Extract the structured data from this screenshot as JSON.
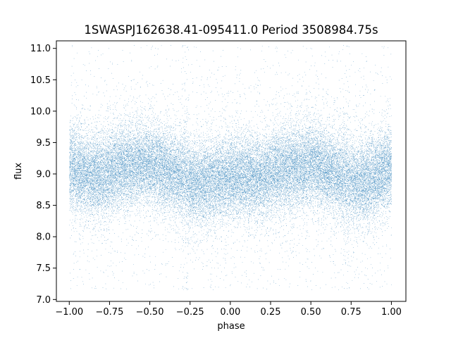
{
  "chart_data": {
    "type": "scatter",
    "title": "1SWASPJ162638.41-095411.0 Period 3508984.75s",
    "xlabel": "phase",
    "ylabel": "flux",
    "xlim": [
      -1.08,
      1.09
    ],
    "ylim": [
      6.97,
      11.12
    ],
    "x_ticks": [
      -1.0,
      -0.75,
      -0.5,
      -0.25,
      0.0,
      0.25,
      0.5,
      0.75,
      1.0
    ],
    "x_tick_labels": [
      "−1.00",
      "−0.75",
      "−0.50",
      "−0.25",
      "0.00",
      "0.25",
      "0.50",
      "0.75",
      "1.00"
    ],
    "y_ticks": [
      7.0,
      7.5,
      8.0,
      8.5,
      9.0,
      9.5,
      10.0,
      10.5,
      11.0
    ],
    "y_tick_labels": [
      "7.0",
      "7.5",
      "8.0",
      "8.5",
      "9.0",
      "9.5",
      "10.0",
      "10.5",
      "11.0"
    ],
    "grid": false,
    "legend": "none",
    "marker_color": "#1f77b4",
    "phase_range": [
      -1.0,
      1.0
    ],
    "flux_range": [
      7.15,
      11.05
    ],
    "approx_point_count": 40000,
    "mean_flux_profile": {
      "phase": [
        -1.0,
        -0.9,
        -0.8,
        -0.7,
        -0.6,
        -0.5,
        -0.4,
        -0.3,
        -0.25,
        -0.2,
        -0.1,
        0.0,
        0.1,
        0.2,
        0.3,
        0.4,
        0.5,
        0.6,
        0.7,
        0.75,
        0.8,
        0.9,
        1.0
      ],
      "flux": [
        9.1,
        9.0,
        8.95,
        9.1,
        9.15,
        9.15,
        9.05,
        8.95,
        8.85,
        8.85,
        8.9,
        8.95,
        8.95,
        8.95,
        9.05,
        9.1,
        9.15,
        9.05,
        8.95,
        8.85,
        8.85,
        8.95,
        9.1
      ]
    },
    "scatter_sigma": 0.32,
    "dip_phases": [
      -0.28,
      0.72
    ]
  }
}
